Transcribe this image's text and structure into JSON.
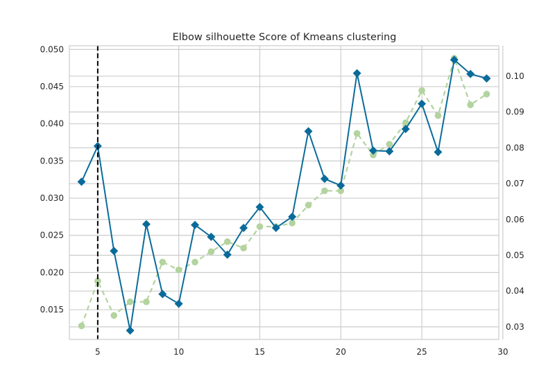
{
  "chart_data": {
    "type": "line",
    "title": "Elbow silhouette Score of Kmeans clustering",
    "xlabel": "",
    "ylabel": "",
    "y2label": "",
    "x": [
      4,
      5,
      6,
      7,
      8,
      9,
      10,
      11,
      12,
      13,
      14,
      15,
      16,
      17,
      18,
      19,
      20,
      21,
      22,
      23,
      24,
      25,
      26,
      27,
      28,
      29
    ],
    "xlim": [
      3.25,
      29.75
    ],
    "ylim": [
      0.011,
      0.0505
    ],
    "y2lim": [
      0.0265,
      0.1085
    ],
    "xticks": [
      5,
      10,
      15,
      20,
      25,
      30
    ],
    "yticks": [
      0.015,
      0.02,
      0.025,
      0.03,
      0.035,
      0.04,
      0.045,
      0.05
    ],
    "y2ticks": [
      0.03,
      0.04,
      0.05,
      0.06,
      0.07,
      0.08,
      0.09,
      0.1
    ],
    "xtick_labels": [
      "5",
      "10",
      "15",
      "20",
      "25",
      "30"
    ],
    "ytick_labels": [
      "0.015",
      "0.020",
      "0.025",
      "0.030",
      "0.035",
      "0.040",
      "0.045",
      "0.050"
    ],
    "y2tick_labels": [
      "0.03",
      "0.04",
      "0.05",
      "0.06",
      "0.07",
      "0.08",
      "0.09",
      "0.10"
    ],
    "grid": true,
    "elbow_x": 5,
    "series": [
      {
        "axis": "left",
        "color": "#0a6b9a",
        "marker": "diamond",
        "style": "solid",
        "values": [
          0.0322,
          0.037,
          0.0229,
          0.0122,
          0.0265,
          0.0171,
          0.0158,
          0.0264,
          0.0248,
          0.0224,
          0.026,
          0.0288,
          0.026,
          0.0275,
          0.039,
          0.0326,
          0.0317,
          0.0468,
          0.0364,
          0.0363,
          0.0393,
          0.0427,
          0.0362,
          0.0486,
          0.0467,
          0.0461
        ]
      },
      {
        "axis": "right",
        "color": "#b3d39f",
        "marker": "circle",
        "style": "dashed",
        "values": [
          0.0303,
          0.0428,
          0.0332,
          0.037,
          0.037,
          0.0481,
          0.0459,
          0.0481,
          0.051,
          0.0538,
          0.052,
          0.058,
          0.058,
          0.059,
          0.064,
          0.068,
          0.068,
          0.084,
          0.078,
          0.081,
          0.087,
          0.096,
          0.089,
          0.105,
          0.092,
          0.095
        ]
      }
    ]
  }
}
